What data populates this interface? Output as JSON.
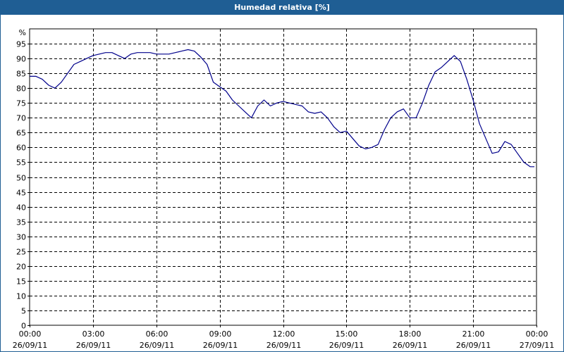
{
  "window": {
    "title": "Humedad relativa [%]"
  },
  "chart_data": {
    "type": "line",
    "title": "Humedad relativa [%]",
    "ylabel": "%",
    "xlabel": "",
    "ylim": [
      0,
      100
    ],
    "grid": true,
    "line_color": "#00008b",
    "y_ticks": [
      "0",
      "5",
      "10",
      "15",
      "20",
      "25",
      "30",
      "35",
      "40",
      "45",
      "50",
      "55",
      "60",
      "65",
      "70",
      "75",
      "80",
      "85",
      "90",
      "95"
    ],
    "x_ticks": [
      {
        "time": "00:00",
        "date": "26/09/11"
      },
      {
        "time": "03:00",
        "date": "26/09/11"
      },
      {
        "time": "06:00",
        "date": "26/09/11"
      },
      {
        "time": "09:00",
        "date": "26/09/11"
      },
      {
        "time": "12:00",
        "date": "26/09/11"
      },
      {
        "time": "15:00",
        "date": "26/09/11"
      },
      {
        "time": "18:00",
        "date": "26/09/11"
      },
      {
        "time": "21:00",
        "date": "26/09/11"
      },
      {
        "time": "00:00",
        "date": "27/09/11"
      }
    ],
    "series": [
      {
        "x_hours": [
          0.0,
          0.3,
          0.6,
          0.9,
          1.2,
          1.5,
          1.8,
          2.1,
          2.4,
          2.7,
          3.0,
          3.3,
          3.6,
          3.9,
          4.2,
          4.5,
          4.8,
          5.1,
          5.4,
          5.7,
          6.0,
          6.3,
          6.6,
          6.9,
          7.2,
          7.5,
          7.8,
          8.1,
          8.4,
          8.7,
          9.0,
          9.3,
          9.6,
          9.9,
          10.2,
          10.5,
          10.8,
          11.1,
          11.4,
          11.7,
          12.0,
          12.3,
          12.6,
          12.9,
          13.2,
          13.5,
          13.8,
          14.1,
          14.4,
          14.7,
          15.0,
          15.3,
          15.6,
          15.9,
          16.2,
          16.5,
          16.8,
          17.1,
          17.4,
          17.7,
          18.0,
          18.3,
          18.6,
          18.9,
          19.2,
          19.5,
          19.8,
          20.1,
          20.4,
          20.7,
          21.0,
          21.3,
          21.6,
          21.9,
          22.2,
          22.5,
          22.8,
          23.1,
          23.4,
          23.7,
          23.9
        ],
        "y": [
          84,
          84,
          83,
          81,
          80,
          82,
          85,
          88,
          89,
          90,
          91,
          91.5,
          92,
          92,
          91,
          90,
          91.5,
          92,
          92,
          92,
          91.5,
          91.5,
          91.5,
          92,
          92.5,
          93,
          92.5,
          90.5,
          88,
          82,
          80.5,
          79,
          76,
          74,
          72,
          70,
          74,
          76,
          74,
          75,
          75.5,
          75,
          74.5,
          74,
          72,
          71.5,
          72,
          70,
          67,
          65,
          65.5,
          63,
          60.5,
          59.5,
          60,
          61,
          66,
          70,
          72,
          73,
          70,
          70,
          75,
          81,
          85.5,
          87,
          89,
          91,
          89,
          83,
          76,
          68,
          63,
          58,
          58.5,
          62,
          61,
          58,
          55,
          53.5,
          53.5
        ]
      }
    ]
  }
}
